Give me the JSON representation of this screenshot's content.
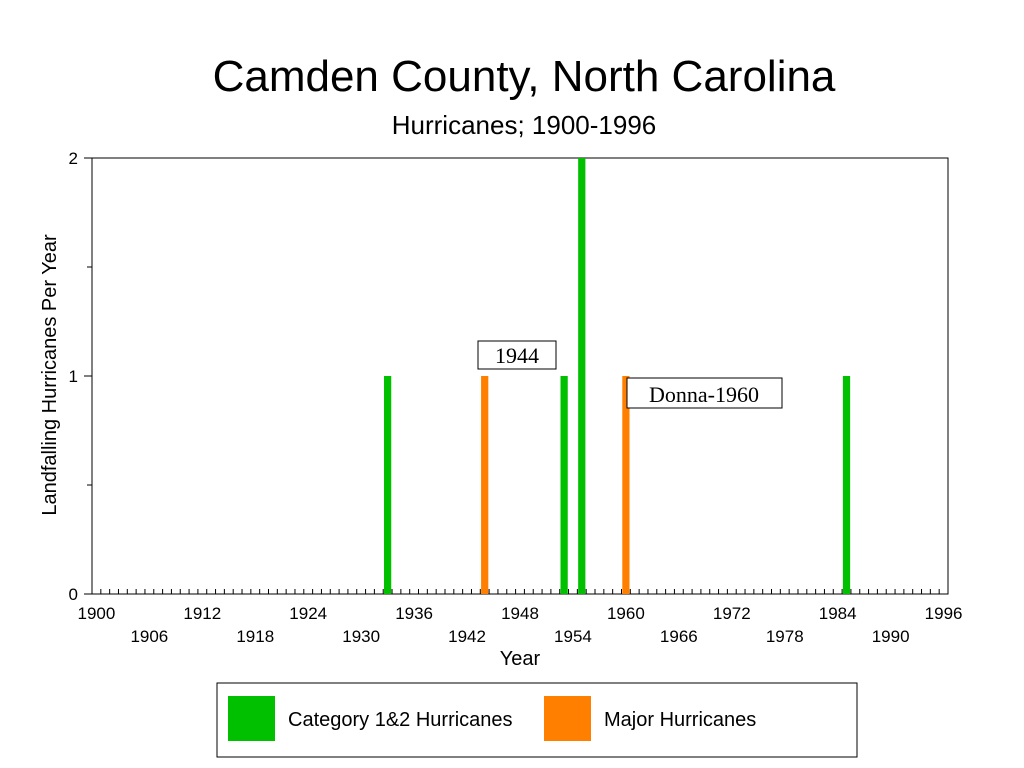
{
  "chart_data": {
    "type": "bar",
    "title": "Camden County, North Carolina",
    "subtitle": "Hurricanes;  1900-1996",
    "xlabel": "Year",
    "ylabel": "Landfalling Hurricanes Per Year",
    "xlim": [
      1900,
      1996
    ],
    "ylim": [
      0,
      2
    ],
    "x_tick_labels_row1": [
      "1900",
      "1912",
      "1924",
      "1936",
      "1948",
      "1960",
      "1972",
      "1984",
      "1996"
    ],
    "x_tick_labels_row2": [
      "1906",
      "1918",
      "1930",
      "1942",
      "1954",
      "1966",
      "1978",
      "1990"
    ],
    "y_tick_labels": [
      "0",
      "1",
      "2"
    ],
    "grid": false,
    "legend_position": "bottom",
    "series": [
      {
        "name": "Category 1&2 Hurricanes",
        "color": "#00c000",
        "points": [
          {
            "year": 1933,
            "value": 1
          },
          {
            "year": 1953,
            "value": 1
          },
          {
            "year": 1955,
            "value": 2
          },
          {
            "year": 1985,
            "value": 1
          }
        ]
      },
      {
        "name": "Major Hurricanes",
        "color": "#ff8000",
        "points": [
          {
            "year": 1944,
            "value": 1
          },
          {
            "year": 1960,
            "value": 1
          }
        ]
      }
    ],
    "annotations": [
      {
        "text": "1944",
        "year": 1944
      },
      {
        "text": "Donna-1960",
        "year": 1960
      }
    ]
  }
}
